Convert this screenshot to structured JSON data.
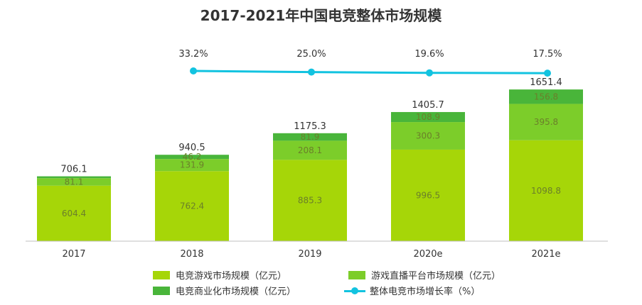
{
  "chart_data": {
    "type": "bar",
    "title": "2017-2021年中国电竞整体市场规模",
    "categories": [
      "2017",
      "2018",
      "2019",
      "2020e",
      "2021e"
    ],
    "ylim": [
      0,
      1800
    ],
    "series": [
      {
        "name": "电竞游戏市场规模（亿元）",
        "values": [
          604.4,
          762.4,
          885.3,
          996.5,
          1098.8
        ],
        "color": "#a6d608"
      },
      {
        "name": "游戏直播平台市场规模（亿元）",
        "values": [
          81.1,
          131.9,
          208.1,
          300.3,
          395.8
        ],
        "color": "#7ccd2a"
      },
      {
        "name": "电竞商业化市场规模（亿元）",
        "values": [
          20.6,
          46.2,
          81.9,
          108.9,
          156.8
        ],
        "color": "#49b53a"
      }
    ],
    "totals": [
      "706.1",
      "940.5",
      "1175.3",
      "1405.7",
      "1651.4"
    ],
    "inner_labels": [
      [
        "604.4",
        "81.1",
        ""
      ],
      [
        "762.4",
        "131.9",
        "46.2"
      ],
      [
        "885.3",
        "208.1",
        "81.9"
      ],
      [
        "996.5",
        "300.3",
        "108.9"
      ],
      [
        "1098.8",
        "395.8",
        "156.8"
      ]
    ],
    "growth": {
      "name": "整体电竞市场增长率（%）",
      "categories": [
        "2018",
        "2019",
        "2020e",
        "2021e"
      ],
      "values": [
        33.2,
        25.0,
        19.6,
        17.5
      ],
      "labels": [
        "33.2%",
        "25.0%",
        "19.6%",
        "17.5%"
      ],
      "color": "#12c3e0"
    },
    "legend_position": "bottom",
    "grid": false
  }
}
